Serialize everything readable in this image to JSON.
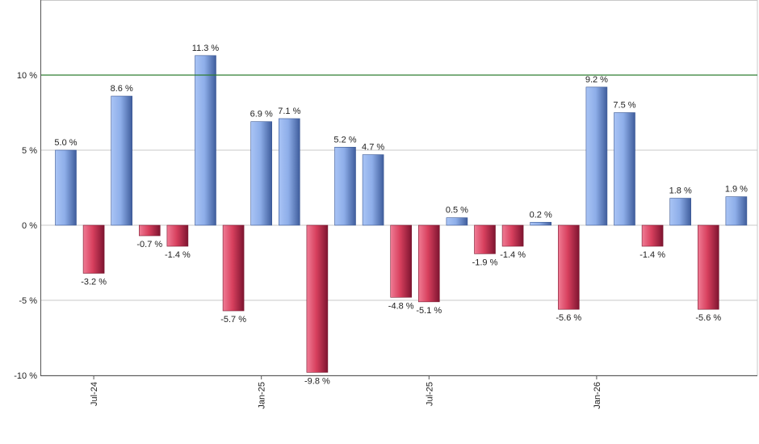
{
  "chart_data": {
    "type": "bar",
    "y_unit_suffix": " %",
    "ylim": [
      -10,
      15
    ],
    "yticks": [
      -10,
      -5,
      0,
      5,
      10
    ],
    "ytick_labels": [
      "-10 %",
      "-5 %",
      "0 %",
      "5 %",
      "10 %"
    ],
    "reference_line": 10,
    "grid": true,
    "x_tick_labels": [
      {
        "label": "Jul-24",
        "index": 1
      },
      {
        "label": "Jan-25",
        "index": 7
      },
      {
        "label": "Jul-25",
        "index": 13
      },
      {
        "label": "Jan-26",
        "index": 19
      }
    ],
    "values": [
      5.0,
      -3.2,
      8.6,
      -0.7,
      -1.4,
      11.3,
      -5.7,
      6.9,
      7.1,
      -9.8,
      5.2,
      4.7,
      -4.8,
      -5.1,
      0.5,
      -1.9,
      -1.4,
      0.2,
      -5.6,
      9.2,
      7.5,
      -1.4,
      1.8,
      -5.6,
      1.9
    ],
    "data_labels": [
      "5.0 %",
      "-3.2 %",
      "8.6 %",
      "-0.7 %",
      "-1.4 %",
      "11.3 %",
      "-5.7 %",
      "6.9 %",
      "7.1 %",
      "-9.8 %",
      "5.2 %",
      "4.7 %",
      "-4.8 %",
      "-5.1 %",
      "0.5 %",
      "-1.9 %",
      "-1.4 %",
      "0.2 %",
      "-5.6 %",
      "9.2 %",
      "7.5 %",
      "-1.4 %",
      "1.8 %",
      "-5.6 %",
      "1.9 %"
    ],
    "colors": {
      "positive": "#7a9ce0",
      "negative": "#c8304f",
      "reference_line": "#2e7d32",
      "grid": "#c8c8c8",
      "axis": "#555555"
    }
  }
}
